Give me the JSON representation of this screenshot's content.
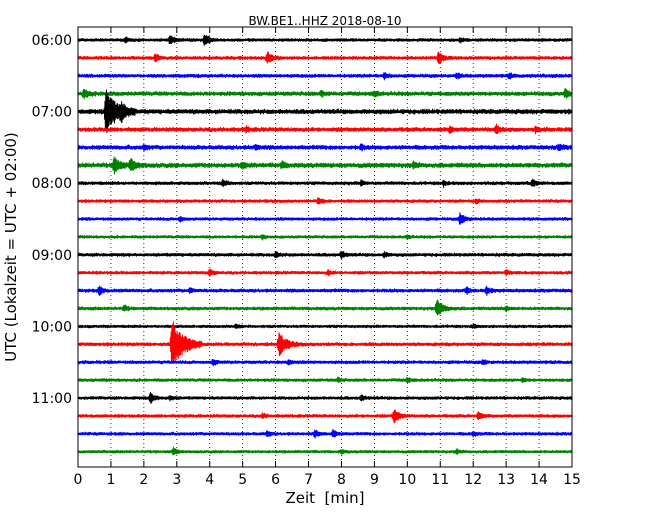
{
  "chart_data": {
    "type": "line",
    "title": "BW.BE1..HHZ 2018-08-10",
    "xlabel": "Zeit  [min]",
    "ylabel": "UTC (Lokalzeit = UTC + 02:00)",
    "xlim": [
      0,
      15
    ],
    "x_ticks": [
      0,
      1,
      2,
      3,
      4,
      5,
      6,
      7,
      8,
      9,
      10,
      11,
      12,
      13,
      14,
      15
    ],
    "x_tick_labels": [
      "0",
      "1",
      "2",
      "3",
      "4",
      "5",
      "6",
      "7",
      "8",
      "9",
      "10",
      "11",
      "12",
      "13",
      "14",
      "15"
    ],
    "y_tick_labels": [
      "06:00",
      "07:00",
      "08:00",
      "09:00",
      "10:00",
      "11:00"
    ],
    "y_tick_rows": [
      0,
      4,
      8,
      12,
      16,
      20
    ],
    "grid": "vertical-dotted",
    "row_interval_minutes": 15,
    "series_colors": [
      "#000000",
      "#ff0000",
      "#0000ff",
      "#008000"
    ],
    "traces": [
      {
        "start": "06:00",
        "base_amp": 1.4,
        "events": [
          [
            1.45,
            2.5
          ],
          [
            2.8,
            5
          ],
          [
            3.85,
            6
          ],
          [
            11.6,
            2.5
          ]
        ]
      },
      {
        "start": "06:15",
        "base_amp": 1.5,
        "events": [
          [
            2.35,
            4
          ],
          [
            5.75,
            6
          ],
          [
            10.95,
            6
          ]
        ]
      },
      {
        "start": "06:30",
        "base_amp": 1.6,
        "events": [
          [
            9.3,
            3
          ],
          [
            11.5,
            3
          ],
          [
            13.1,
            2.5
          ]
        ]
      },
      {
        "start": "06:45",
        "base_amp": 1.9,
        "events": [
          [
            0.18,
            5
          ],
          [
            7.4,
            2.5
          ],
          [
            9.0,
            3
          ],
          [
            14.8,
            4
          ]
        ]
      },
      {
        "start": "07:00",
        "base_amp": 2.2,
        "events": [
          [
            0.85,
            22
          ],
          [
            1.3,
            6
          ]
        ]
      },
      {
        "start": "07:15",
        "base_amp": 1.9,
        "events": [
          [
            5.1,
            2.5
          ],
          [
            11.3,
            3
          ],
          [
            12.7,
            4
          ],
          [
            13.9,
            2.5
          ]
        ]
      },
      {
        "start": "07:30",
        "base_amp": 2.0,
        "events": [
          [
            2.0,
            2.5
          ],
          [
            5.4,
            2.5
          ],
          [
            8.6,
            2.5
          ],
          [
            14.6,
            3
          ]
        ]
      },
      {
        "start": "07:45",
        "base_amp": 2.2,
        "events": [
          [
            1.1,
            8
          ],
          [
            1.6,
            6
          ],
          [
            5.0,
            3
          ],
          [
            6.2,
            3
          ],
          [
            10.2,
            2.5
          ]
        ]
      },
      {
        "start": "08:00",
        "base_amp": 1.5,
        "events": [
          [
            4.4,
            3.5
          ],
          [
            8.6,
            2.5
          ],
          [
            11.1,
            2.5
          ],
          [
            13.8,
            3.5
          ]
        ]
      },
      {
        "start": "08:15",
        "base_amp": 1.4,
        "events": [
          [
            7.3,
            3.5
          ],
          [
            12.1,
            2
          ]
        ]
      },
      {
        "start": "08:30",
        "base_amp": 1.4,
        "events": [
          [
            3.1,
            2.5
          ],
          [
            11.6,
            6
          ]
        ]
      },
      {
        "start": "08:45",
        "base_amp": 1.3,
        "events": [
          [
            5.6,
            2
          ],
          [
            10.0,
            2
          ]
        ]
      },
      {
        "start": "09:00",
        "base_amp": 1.5,
        "events": [
          [
            6.0,
            3
          ],
          [
            8.0,
            3.5
          ],
          [
            9.3,
            2.5
          ]
        ]
      },
      {
        "start": "09:15",
        "base_amp": 1.4,
        "events": [
          [
            4.0,
            3.5
          ],
          [
            7.6,
            2.5
          ],
          [
            13.0,
            2.5
          ]
        ]
      },
      {
        "start": "09:30",
        "base_amp": 1.6,
        "events": [
          [
            0.65,
            4
          ],
          [
            3.4,
            2.5
          ],
          [
            11.8,
            3
          ],
          [
            12.4,
            4
          ]
        ]
      },
      {
        "start": "09:45",
        "base_amp": 1.5,
        "events": [
          [
            1.4,
            3
          ],
          [
            10.9,
            9
          ],
          [
            13.0,
            2.5
          ]
        ]
      },
      {
        "start": "10:00",
        "base_amp": 1.3,
        "events": [
          [
            4.8,
            2
          ],
          [
            12.0,
            2
          ]
        ]
      },
      {
        "start": "10:15",
        "base_amp": 1.6,
        "events": [
          [
            2.85,
            24
          ],
          [
            6.1,
            12
          ]
        ]
      },
      {
        "start": "10:30",
        "base_amp": 1.5,
        "events": [
          [
            4.1,
            3
          ],
          [
            6.4,
            2.5
          ],
          [
            12.3,
            2.5
          ]
        ]
      },
      {
        "start": "10:45",
        "base_amp": 1.4,
        "events": [
          [
            7.9,
            2
          ],
          [
            10.0,
            2.5
          ],
          [
            13.5,
            2
          ]
        ]
      },
      {
        "start": "11:00",
        "base_amp": 1.4,
        "events": [
          [
            2.2,
            5
          ],
          [
            2.8,
            2.5
          ],
          [
            8.6,
            3
          ]
        ]
      },
      {
        "start": "11:15",
        "base_amp": 1.4,
        "events": [
          [
            5.6,
            2.5
          ],
          [
            9.6,
            7
          ],
          [
            12.15,
            4
          ]
        ]
      },
      {
        "start": "11:30",
        "base_amp": 1.4,
        "events": [
          [
            5.75,
            3
          ],
          [
            7.2,
            3.5
          ],
          [
            7.75,
            4
          ],
          [
            12.0,
            2.5
          ]
        ]
      },
      {
        "start": "11:45",
        "base_amp": 1.3,
        "events": [
          [
            2.9,
            3.5
          ],
          [
            8.0,
            2
          ],
          [
            11.5,
            2
          ]
        ]
      }
    ]
  }
}
